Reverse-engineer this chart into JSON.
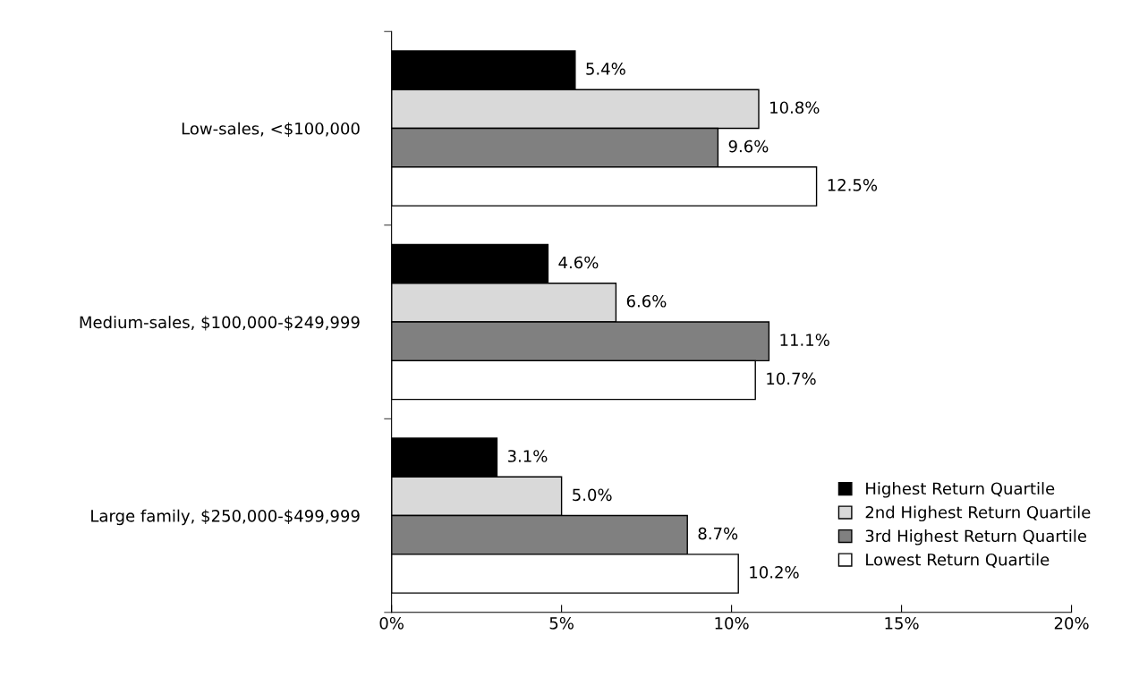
{
  "chart_data": {
    "type": "bar",
    "orientation": "horizontal",
    "categories": [
      "Low-sales, <$100,000",
      "Medium-sales, $100,000-$249,999",
      "Large family, $250,000-$499,999"
    ],
    "series": [
      {
        "name": "Highest Return Quartile",
        "color": "#000000",
        "values": [
          5.4,
          4.6,
          3.1
        ],
        "value_labels": [
          "5.4%",
          "4.6%",
          "3.1%"
        ]
      },
      {
        "name": "2nd Highest Return Quartile",
        "color": "#d9d9d9",
        "values": [
          10.8,
          6.6,
          5.0
        ],
        "value_labels": [
          "10.8%",
          "6.6%",
          "5.0%"
        ]
      },
      {
        "name": "3rd Highest Return Quartile",
        "color": "#808080",
        "values": [
          9.6,
          11.1,
          8.7
        ],
        "value_labels": [
          "9.6%",
          "11.1%",
          "8.7%"
        ]
      },
      {
        "name": "Lowest Return Quartile",
        "color": "#ffffff",
        "values": [
          12.5,
          10.7,
          10.2
        ],
        "value_labels": [
          "12.5%",
          "10.7%",
          "10.2%"
        ]
      }
    ],
    "xlim": [
      0,
      20
    ],
    "xticks": [
      {
        "value": 0,
        "label": "0%"
      },
      {
        "value": 5,
        "label": "5%"
      },
      {
        "value": 10,
        "label": "10%"
      },
      {
        "value": 15,
        "label": "15%"
      },
      {
        "value": 20,
        "label": "20%"
      }
    ],
    "grid": false,
    "legend": "bottom right"
  }
}
